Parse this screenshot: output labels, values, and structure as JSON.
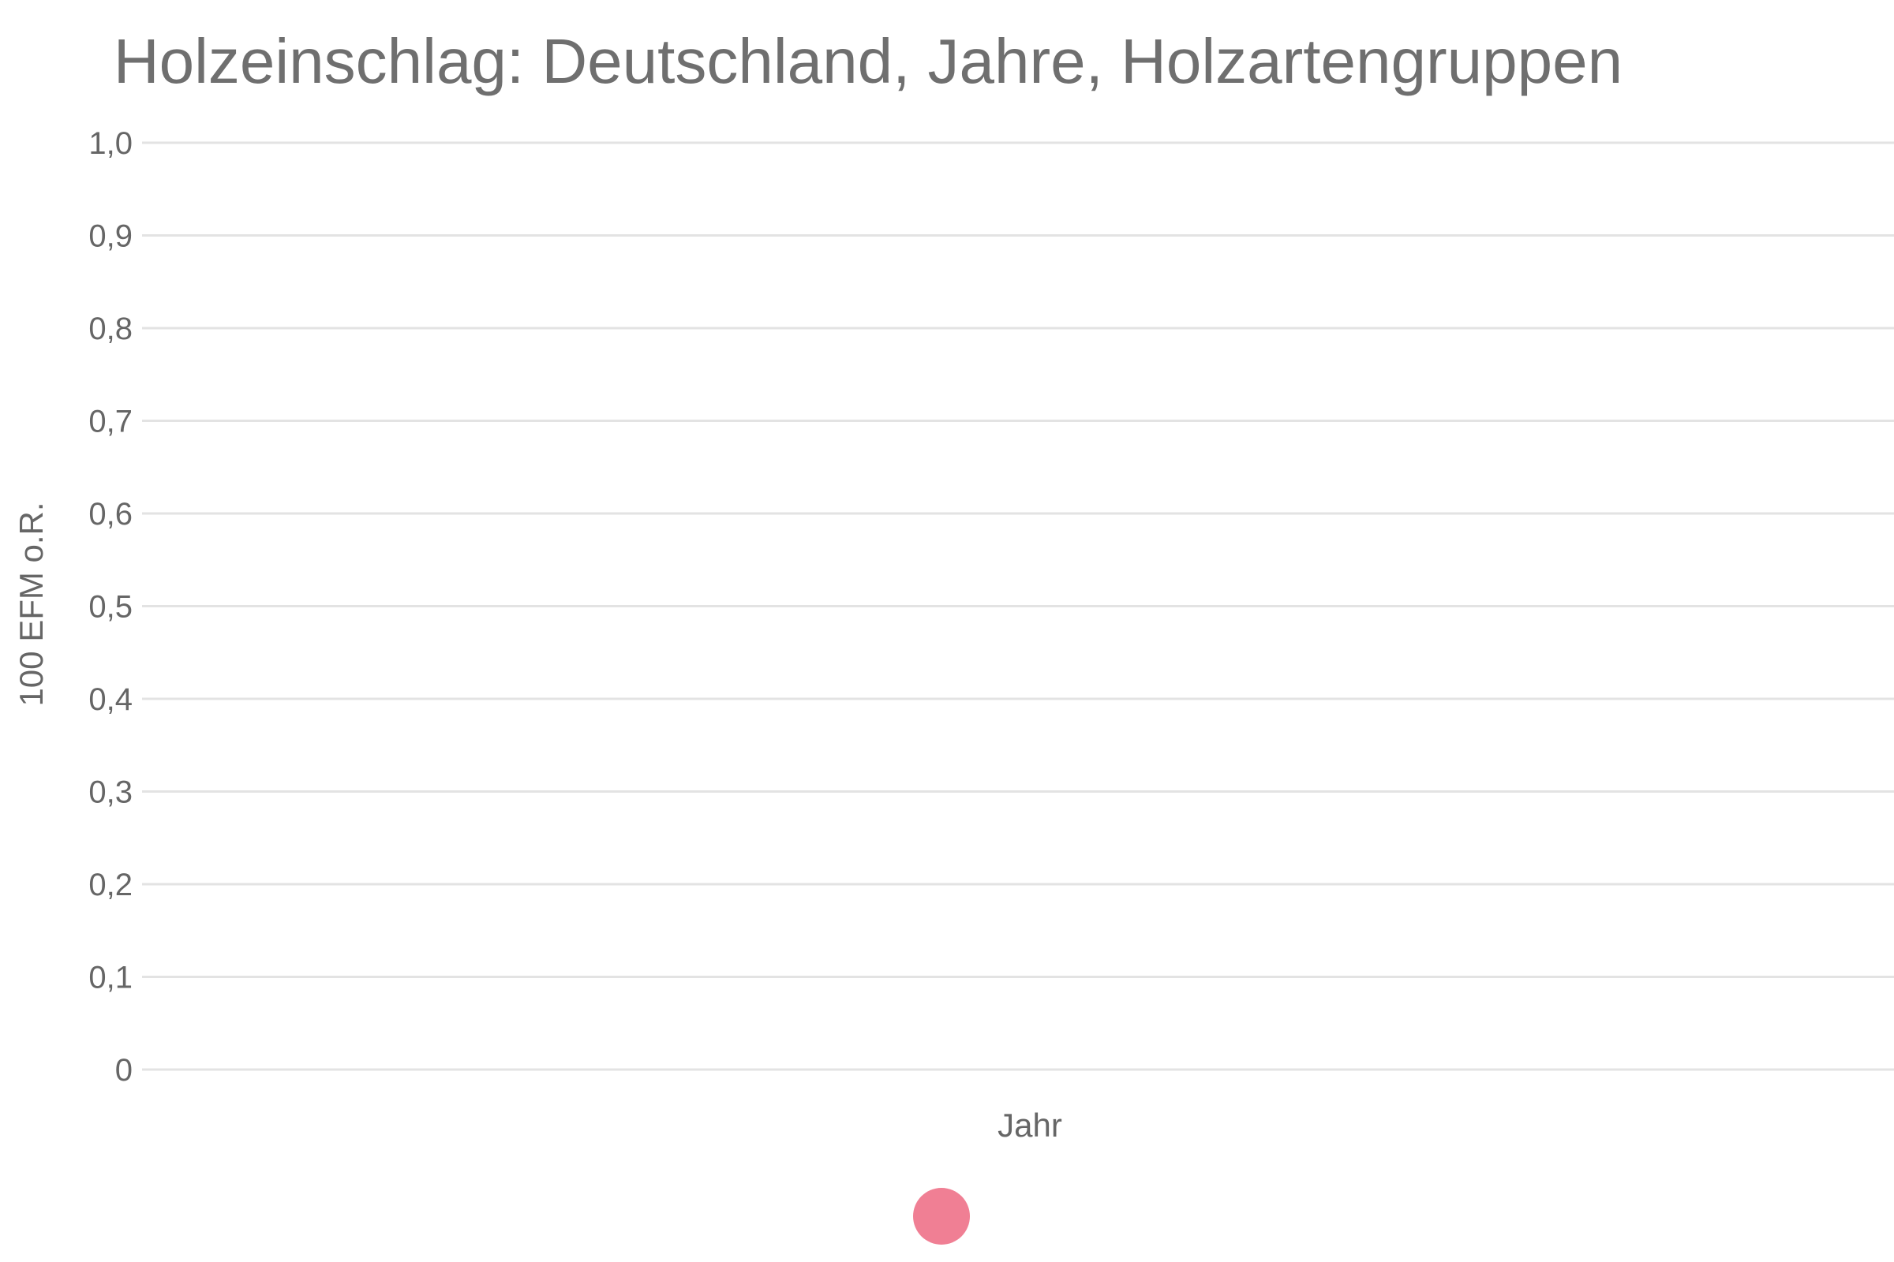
{
  "chart_data": {
    "type": "line",
    "title": "Holzeinschlag: Deutschland, Jahre, Holzartengruppen",
    "xlabel": "Jahr",
    "ylabel": "100 EFM o.R.",
    "ylim": [
      0,
      1
    ],
    "yticks": [
      {
        "value": 0,
        "label": "0"
      },
      {
        "value": 0.1,
        "label": "0,1"
      },
      {
        "value": 0.2,
        "label": "0,2"
      },
      {
        "value": 0.3,
        "label": "0,3"
      },
      {
        "value": 0.4,
        "label": "0,4"
      },
      {
        "value": 0.5,
        "label": "0,5"
      },
      {
        "value": 0.6,
        "label": "0,6"
      },
      {
        "value": 0.7,
        "label": "0,7"
      },
      {
        "value": 0.8,
        "label": "0,8"
      },
      {
        "value": 0.9,
        "label": "0,9"
      },
      {
        "value": 1.0,
        "label": "1,0"
      }
    ],
    "grid": true,
    "legend_position": "bottom",
    "series": [
      {
        "color": "#f07f94",
        "values": []
      }
    ]
  }
}
